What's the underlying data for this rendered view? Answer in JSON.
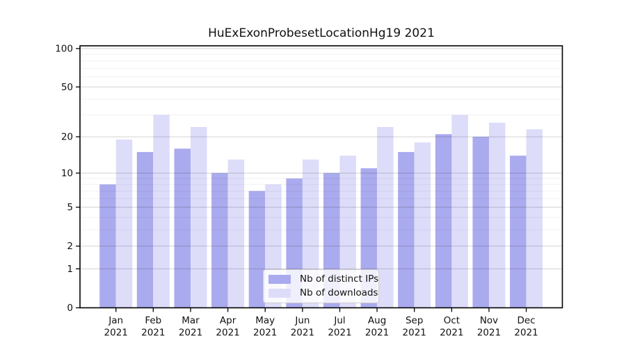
{
  "title": "HuExExonProbesetLocationHg19 2021",
  "chart_data": {
    "type": "bar",
    "title": "HuExExonProbesetLocationHg19 2021",
    "categories": [
      "Jan",
      "Feb",
      "Mar",
      "Apr",
      "May",
      "Jun",
      "Jul",
      "Aug",
      "Sep",
      "Oct",
      "Nov",
      "Dec"
    ],
    "x_tick_second_line": "2021",
    "series": [
      {
        "name": "Nb of distinct IPs",
        "color": "#AAAAEE",
        "values": [
          8,
          15,
          16,
          10,
          7,
          9,
          10,
          11,
          15,
          21,
          20,
          14
        ]
      },
      {
        "name": "Nb of downloads",
        "color": "#DDDDFA",
        "values": [
          19,
          30,
          24,
          13,
          8,
          13,
          14,
          24,
          18,
          30,
          26,
          23
        ]
      }
    ],
    "yscale": "log1p",
    "ylim": [
      0,
      100
    ],
    "y_major_ticks": [
      0,
      1,
      2,
      5,
      10,
      20,
      50,
      100
    ],
    "y_minor_ticks": [
      3,
      4,
      6,
      7,
      8,
      9,
      30,
      40,
      60,
      70,
      80,
      90
    ],
    "grid": true,
    "frame": true,
    "legend_position": "inside-bottom-center",
    "background_color": "#FFFFFF",
    "major_gridline_color": "#D2D2D2",
    "minor_gridline_color": "#F0F0F0",
    "axis_color": "#000000",
    "text_color": "#111111"
  }
}
